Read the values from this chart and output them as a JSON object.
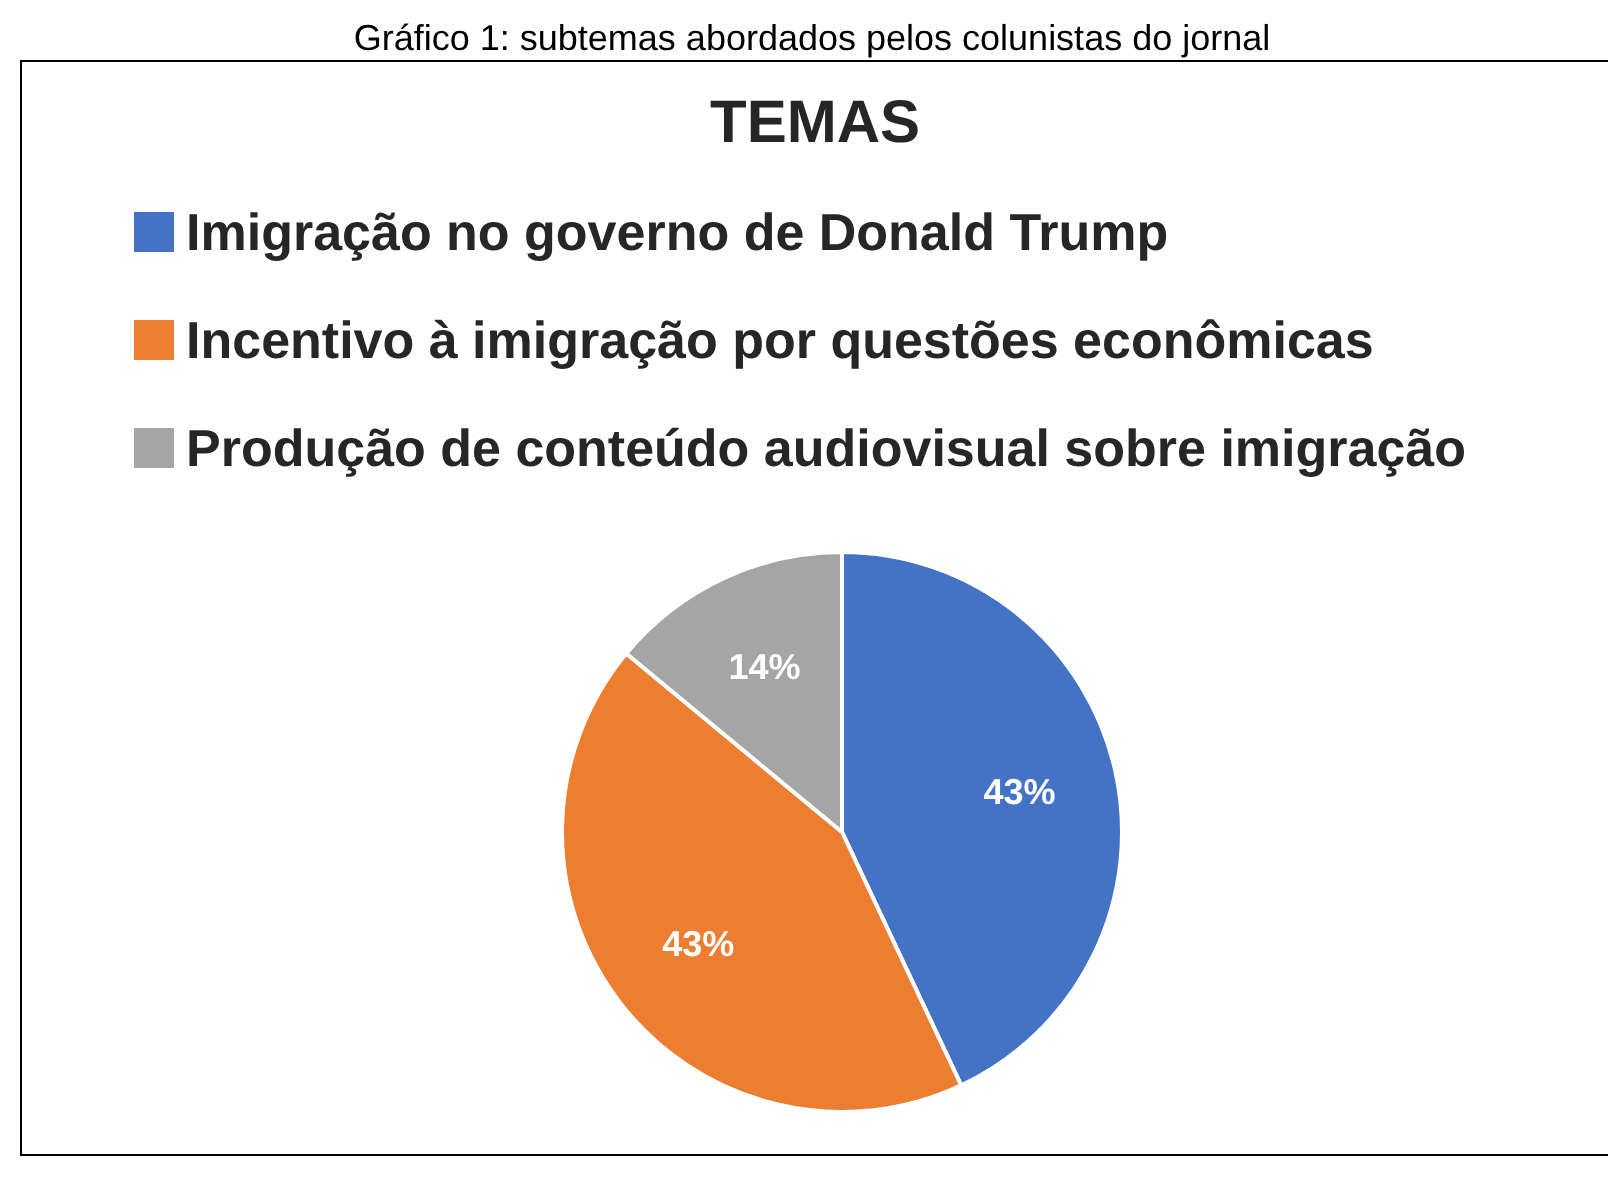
{
  "chart_data": {
    "type": "pie",
    "title": "TEMAS",
    "annotations": [
      "Gráfico 1: subtemas abordados pelos colunistas do jornal"
    ],
    "categories": [
      "Imigração no governo de Donald Trump",
      "Incentivo à imigração por questões econômicas",
      "Produção de conteúdo audiovisual sobre imigração"
    ],
    "values": [
      43,
      43,
      14
    ],
    "colors": [
      "#4472c4",
      "#ed7d31",
      "#a5a5a5"
    ],
    "value_labels": [
      "43%",
      "43%",
      "14%"
    ],
    "legend": "top"
  }
}
